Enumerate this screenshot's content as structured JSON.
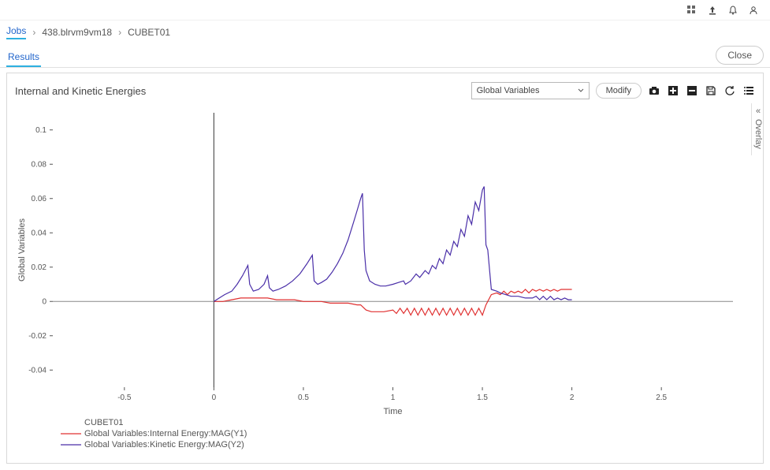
{
  "topbar": {
    "icons": [
      "apps-icon",
      "upload-icon",
      "bell-icon",
      "user-icon"
    ]
  },
  "breadcrumb": {
    "root": "Jobs",
    "sep": "›",
    "items": [
      "438.blrvm9vm18",
      "CUBET01"
    ]
  },
  "tabs": {
    "active": "Results"
  },
  "buttons": {
    "close": "Close",
    "modify": "Modify"
  },
  "panel": {
    "title": "Internal and Kinetic Energies",
    "select_value": "Global Variables",
    "overlay_label": "Overlay"
  },
  "chart": {
    "type": "line",
    "background_color": "#ffffff",
    "axis_color": "#888888",
    "origin_line_color": "#555555",
    "tick_color": "#555555",
    "label_fontsize": 11,
    "tick_fontsize": 10,
    "xlabel": "Time",
    "ylabel": "Global Variables",
    "xlim": [
      -0.9,
      2.9
    ],
    "ylim": [
      -0.05,
      0.11
    ],
    "xticks": [
      -0.5,
      0,
      0.5,
      1,
      1.5,
      2,
      2.5
    ],
    "yticks": [
      -0.04,
      -0.02,
      0,
      0.02,
      0.04,
      0.06,
      0.08,
      0.1
    ],
    "legend": {
      "title": "CUBET01",
      "items": [
        {
          "label": "Global Variables:Internal Energy:MAG(Y1)",
          "color": "#e03030",
          "width": 1.2
        },
        {
          "label": "Global Variables:Kinetic Energy:MAG(Y2)",
          "color": "#4a2fa8",
          "width": 1.2
        }
      ]
    },
    "series": [
      {
        "name": "internal",
        "color": "#e03030",
        "width": 1.2,
        "points": [
          [
            0.0,
            0.0
          ],
          [
            0.05,
            0.0
          ],
          [
            0.1,
            0.001
          ],
          [
            0.15,
            0.002
          ],
          [
            0.2,
            0.002
          ],
          [
            0.25,
            0.002
          ],
          [
            0.3,
            0.002
          ],
          [
            0.35,
            0.001
          ],
          [
            0.4,
            0.001
          ],
          [
            0.45,
            0.001
          ],
          [
            0.5,
            0.0
          ],
          [
            0.55,
            0.0
          ],
          [
            0.6,
            0.0
          ],
          [
            0.65,
            -0.001
          ],
          [
            0.7,
            -0.001
          ],
          [
            0.75,
            -0.001
          ],
          [
            0.8,
            -0.002
          ],
          [
            0.82,
            -0.002
          ],
          [
            0.85,
            -0.005
          ],
          [
            0.88,
            -0.006
          ],
          [
            0.9,
            -0.006
          ],
          [
            0.95,
            -0.006
          ],
          [
            1.0,
            -0.005
          ],
          [
            1.02,
            -0.007
          ],
          [
            1.04,
            -0.004
          ],
          [
            1.06,
            -0.007
          ],
          [
            1.08,
            -0.004
          ],
          [
            1.1,
            -0.008
          ],
          [
            1.12,
            -0.004
          ],
          [
            1.14,
            -0.008
          ],
          [
            1.16,
            -0.004
          ],
          [
            1.18,
            -0.008
          ],
          [
            1.2,
            -0.004
          ],
          [
            1.22,
            -0.008
          ],
          [
            1.24,
            -0.004
          ],
          [
            1.26,
            -0.008
          ],
          [
            1.28,
            -0.004
          ],
          [
            1.3,
            -0.008
          ],
          [
            1.32,
            -0.004
          ],
          [
            1.34,
            -0.008
          ],
          [
            1.36,
            -0.004
          ],
          [
            1.38,
            -0.008
          ],
          [
            1.4,
            -0.004
          ],
          [
            1.42,
            -0.008
          ],
          [
            1.44,
            -0.004
          ],
          [
            1.46,
            -0.008
          ],
          [
            1.48,
            -0.004
          ],
          [
            1.5,
            -0.008
          ],
          [
            1.52,
            -0.002
          ],
          [
            1.55,
            0.004
          ],
          [
            1.58,
            0.005
          ],
          [
            1.6,
            0.004
          ],
          [
            1.62,
            0.006
          ],
          [
            1.64,
            0.004
          ],
          [
            1.66,
            0.006
          ],
          [
            1.68,
            0.005
          ],
          [
            1.7,
            0.006
          ],
          [
            1.72,
            0.005
          ],
          [
            1.74,
            0.007
          ],
          [
            1.76,
            0.005
          ],
          [
            1.78,
            0.007
          ],
          [
            1.8,
            0.006
          ],
          [
            1.82,
            0.007
          ],
          [
            1.84,
            0.006
          ],
          [
            1.86,
            0.007
          ],
          [
            1.88,
            0.006
          ],
          [
            1.9,
            0.007
          ],
          [
            1.92,
            0.006
          ],
          [
            1.94,
            0.007
          ],
          [
            1.96,
            0.007
          ],
          [
            1.98,
            0.007
          ],
          [
            2.0,
            0.007
          ]
        ]
      },
      {
        "name": "kinetic",
        "color": "#4a2fa8",
        "width": 1.2,
        "points": [
          [
            0.0,
            0.0
          ],
          [
            0.03,
            0.002
          ],
          [
            0.06,
            0.004
          ],
          [
            0.1,
            0.006
          ],
          [
            0.13,
            0.01
          ],
          [
            0.16,
            0.015
          ],
          [
            0.19,
            0.021
          ],
          [
            0.2,
            0.01
          ],
          [
            0.22,
            0.006
          ],
          [
            0.25,
            0.007
          ],
          [
            0.28,
            0.01
          ],
          [
            0.3,
            0.015
          ],
          [
            0.31,
            0.008
          ],
          [
            0.33,
            0.006
          ],
          [
            0.36,
            0.007
          ],
          [
            0.4,
            0.009
          ],
          [
            0.44,
            0.012
          ],
          [
            0.48,
            0.016
          ],
          [
            0.52,
            0.022
          ],
          [
            0.55,
            0.027
          ],
          [
            0.56,
            0.012
          ],
          [
            0.58,
            0.01
          ],
          [
            0.6,
            0.011
          ],
          [
            0.63,
            0.013
          ],
          [
            0.66,
            0.017
          ],
          [
            0.69,
            0.022
          ],
          [
            0.72,
            0.028
          ],
          [
            0.75,
            0.036
          ],
          [
            0.78,
            0.046
          ],
          [
            0.8,
            0.053
          ],
          [
            0.82,
            0.06
          ],
          [
            0.83,
            0.063
          ],
          [
            0.84,
            0.03
          ],
          [
            0.85,
            0.018
          ],
          [
            0.87,
            0.012
          ],
          [
            0.9,
            0.01
          ],
          [
            0.93,
            0.009
          ],
          [
            0.96,
            0.009
          ],
          [
            1.0,
            0.01
          ],
          [
            1.03,
            0.011
          ],
          [
            1.06,
            0.012
          ],
          [
            1.07,
            0.01
          ],
          [
            1.1,
            0.012
          ],
          [
            1.13,
            0.016
          ],
          [
            1.15,
            0.014
          ],
          [
            1.18,
            0.018
          ],
          [
            1.2,
            0.016
          ],
          [
            1.22,
            0.021
          ],
          [
            1.24,
            0.019
          ],
          [
            1.26,
            0.025
          ],
          [
            1.28,
            0.022
          ],
          [
            1.3,
            0.03
          ],
          [
            1.32,
            0.027
          ],
          [
            1.34,
            0.035
          ],
          [
            1.36,
            0.032
          ],
          [
            1.38,
            0.042
          ],
          [
            1.4,
            0.038
          ],
          [
            1.42,
            0.05
          ],
          [
            1.44,
            0.045
          ],
          [
            1.46,
            0.058
          ],
          [
            1.48,
            0.053
          ],
          [
            1.5,
            0.065
          ],
          [
            1.51,
            0.067
          ],
          [
            1.52,
            0.033
          ],
          [
            1.53,
            0.03
          ],
          [
            1.55,
            0.007
          ],
          [
            1.58,
            0.006
          ],
          [
            1.6,
            0.005
          ],
          [
            1.63,
            0.004
          ],
          [
            1.66,
            0.003
          ],
          [
            1.7,
            0.003
          ],
          [
            1.74,
            0.002
          ],
          [
            1.78,
            0.002
          ],
          [
            1.8,
            0.003
          ],
          [
            1.82,
            0.001
          ],
          [
            1.84,
            0.003
          ],
          [
            1.86,
            0.001
          ],
          [
            1.88,
            0.003
          ],
          [
            1.9,
            0.001
          ],
          [
            1.92,
            0.002
          ],
          [
            1.94,
            0.001
          ],
          [
            1.96,
            0.002
          ],
          [
            1.98,
            0.001
          ],
          [
            2.0,
            0.001
          ]
        ]
      }
    ]
  }
}
